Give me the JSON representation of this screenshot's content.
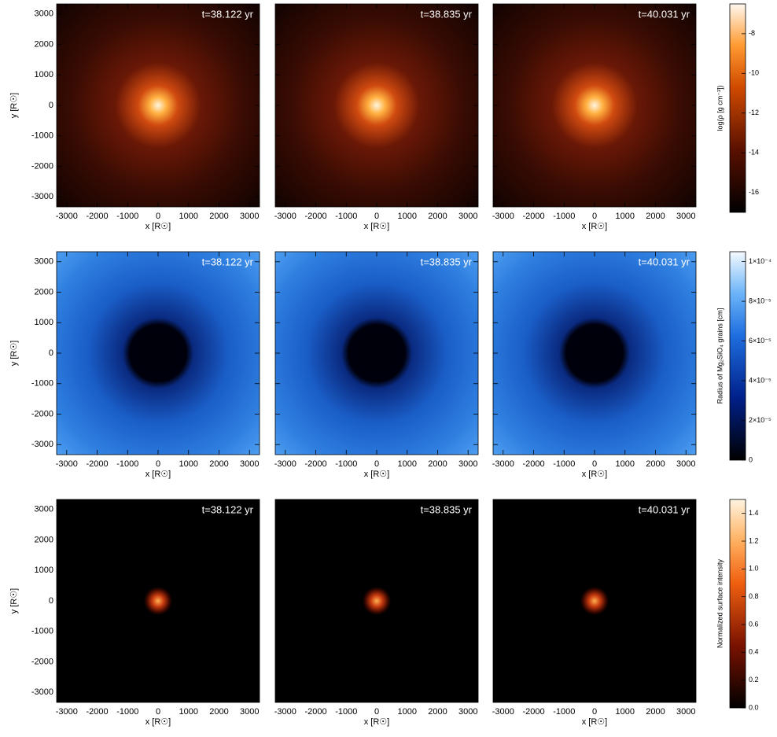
{
  "chart_data": [
    {
      "type": "image",
      "title": "t=38.122 yr",
      "xlabel": "x [R☉]",
      "ylabel": "y [R☉]",
      "xlim": [
        -3330,
        3330
      ],
      "ylim": [
        -3330,
        3330
      ],
      "xticks": [
        -3000,
        -2000,
        -1000,
        0,
        1000,
        2000,
        3000
      ],
      "yticks": [
        -3000,
        -2000,
        -1000,
        0,
        1000,
        2000,
        3000
      ]
    },
    {
      "type": "image",
      "title": "t=38.835 yr",
      "xlabel": "x [R☉]",
      "xlim": [
        -3330,
        3330
      ],
      "ylim": [
        -3330,
        3330
      ],
      "xticks": [
        -3000,
        -2000,
        -1000,
        0,
        1000,
        2000,
        3000
      ],
      "yticks": [
        -3000,
        -2000,
        -1000,
        0,
        1000,
        2000,
        3000
      ]
    },
    {
      "type": "image",
      "title": "t=40.031 yr",
      "xlabel": "x [R☉]",
      "xlim": [
        -3330,
        3330
      ],
      "ylim": [
        -3330,
        3330
      ],
      "xticks": [
        -3000,
        -2000,
        -1000,
        0,
        1000,
        2000,
        3000
      ],
      "yticks": [
        -3000,
        -2000,
        -1000,
        0,
        1000,
        2000,
        3000
      ]
    },
    {
      "type": "image",
      "title": "t=38.122 yr",
      "xlabel": "x [R☉]",
      "ylabel": "y [R☉]",
      "xlim": [
        -3330,
        3330
      ],
      "ylim": [
        -3330,
        3330
      ],
      "xticks": [
        -3000,
        -2000,
        -1000,
        0,
        1000,
        2000,
        3000
      ],
      "yticks": [
        -3000,
        -2000,
        -1000,
        0,
        1000,
        2000,
        3000
      ]
    },
    {
      "type": "image",
      "title": "t=38.835 yr",
      "xlabel": "x [R☉]",
      "xlim": [
        -3330,
        3330
      ],
      "ylim": [
        -3330,
        3330
      ],
      "xticks": [
        -3000,
        -2000,
        -1000,
        0,
        1000,
        2000,
        3000
      ],
      "yticks": [
        -3000,
        -2000,
        -1000,
        0,
        1000,
        2000,
        3000
      ]
    },
    {
      "type": "image",
      "title": "t=40.031 yr",
      "xlabel": "x [R☉]",
      "xlim": [
        -3330,
        3330
      ],
      "ylim": [
        -3330,
        3330
      ],
      "xticks": [
        -3000,
        -2000,
        -1000,
        0,
        1000,
        2000,
        3000
      ],
      "yticks": [
        -3000,
        -2000,
        -1000,
        0,
        1000,
        2000,
        3000
      ]
    },
    {
      "type": "image",
      "title": "t=38.122 yr",
      "xlabel": "x [R☉]",
      "ylabel": "y [R☉]",
      "xlim": [
        -3330,
        3330
      ],
      "ylim": [
        -3330,
        3330
      ],
      "xticks": [
        -3000,
        -2000,
        -1000,
        0,
        1000,
        2000,
        3000
      ],
      "yticks": [
        -3000,
        -2000,
        -1000,
        0,
        1000,
        2000,
        3000
      ]
    },
    {
      "type": "image",
      "title": "t=38.835 yr",
      "xlabel": "x [R☉]",
      "xlim": [
        -3330,
        3330
      ],
      "ylim": [
        -3330,
        3330
      ],
      "xticks": [
        -3000,
        -2000,
        -1000,
        0,
        1000,
        2000,
        3000
      ],
      "yticks": [
        -3000,
        -2000,
        -1000,
        0,
        1000,
        2000,
        3000
      ]
    },
    {
      "type": "image",
      "title": "t=40.031 yr",
      "xlabel": "x [R☉]",
      "xlim": [
        -3330,
        3330
      ],
      "ylim": [
        -3330,
        3330
      ],
      "xticks": [
        -3000,
        -2000,
        -1000,
        0,
        1000,
        2000,
        3000
      ],
      "yticks": [
        -3000,
        -2000,
        -1000,
        0,
        1000,
        2000,
        3000
      ]
    },
    {
      "type": "colorbar",
      "label": "log(ρ [g cm⁻³])",
      "ylim": [
        -17,
        -6.5
      ],
      "yticks": [
        -16,
        -14,
        -12,
        -10,
        -8
      ]
    },
    {
      "type": "colorbar",
      "label": "Radius of Mg₂SiO₄ grains [cm]",
      "ylim": [
        0,
        0.000105
      ],
      "yticks": [
        0,
        {
          "value": 2e-05,
          "label": "2×10⁻⁵"
        },
        {
          "value": 4e-05,
          "label": "4×10⁻⁵"
        },
        {
          "value": 6e-05,
          "label": "6×10⁻⁵"
        },
        {
          "value": 8e-05,
          "label": "8×10⁻⁵"
        },
        {
          "value": 0.0001,
          "label": "1×10⁻⁴"
        }
      ]
    },
    {
      "type": "colorbar",
      "label": "Normalized surface intensity",
      "ylim": [
        0,
        1.5
      ],
      "yticks": [
        {
          "value": 0,
          "label": "0.0"
        },
        0.2,
        0.4,
        0.6,
        0.8,
        {
          "value": 1,
          "label": "1.0"
        },
        1.2,
        1.4
      ]
    }
  ]
}
